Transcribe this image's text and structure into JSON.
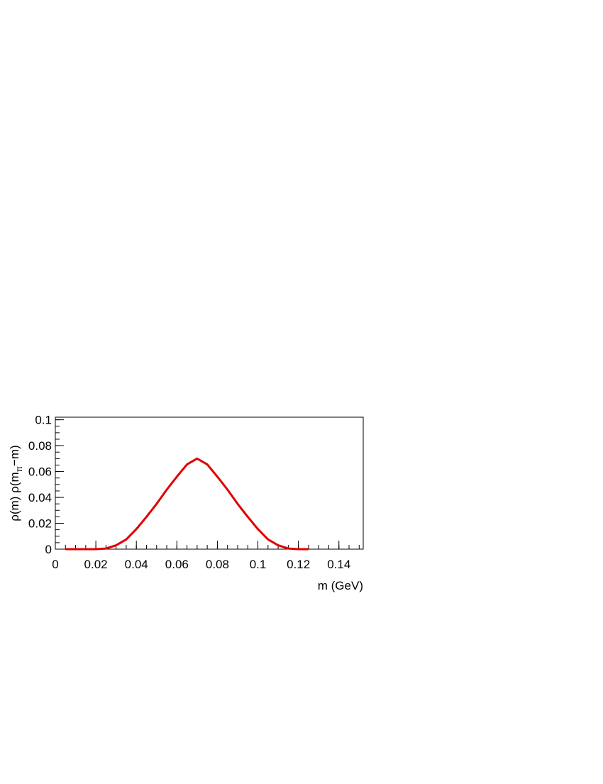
{
  "chart_data": {
    "type": "line",
    "xlabel": "m (GeV)",
    "ylabel": [
      "ρ(m) ρ(m",
      "π",
      "−m)"
    ],
    "x": [
      0.005,
      0.01,
      0.015,
      0.02,
      0.025,
      0.03,
      0.035,
      0.04,
      0.045,
      0.05,
      0.055,
      0.06,
      0.065,
      0.07,
      0.075,
      0.08,
      0.085,
      0.09,
      0.095,
      0.1,
      0.105,
      0.11,
      0.115,
      0.12,
      0.125
    ],
    "series": [
      {
        "color": "#e00000",
        "values": [
          0,
          0,
          0,
          0,
          0.0005,
          0.003,
          0.0075,
          0.0155,
          0.025,
          0.035,
          0.046,
          0.056,
          0.0655,
          0.07,
          0.0655,
          0.056,
          0.046,
          0.035,
          0.025,
          0.0155,
          0.0075,
          0.003,
          0.0005,
          0,
          0
        ]
      }
    ],
    "xlim": [
      0,
      0.152
    ],
    "ylim": [
      0,
      0.102
    ],
    "xticks": [
      0,
      0.02,
      0.04,
      0.06,
      0.08,
      0.1,
      0.12,
      0.14
    ],
    "yticks": [
      0,
      0.02,
      0.04,
      0.06,
      0.08,
      0.1
    ]
  }
}
